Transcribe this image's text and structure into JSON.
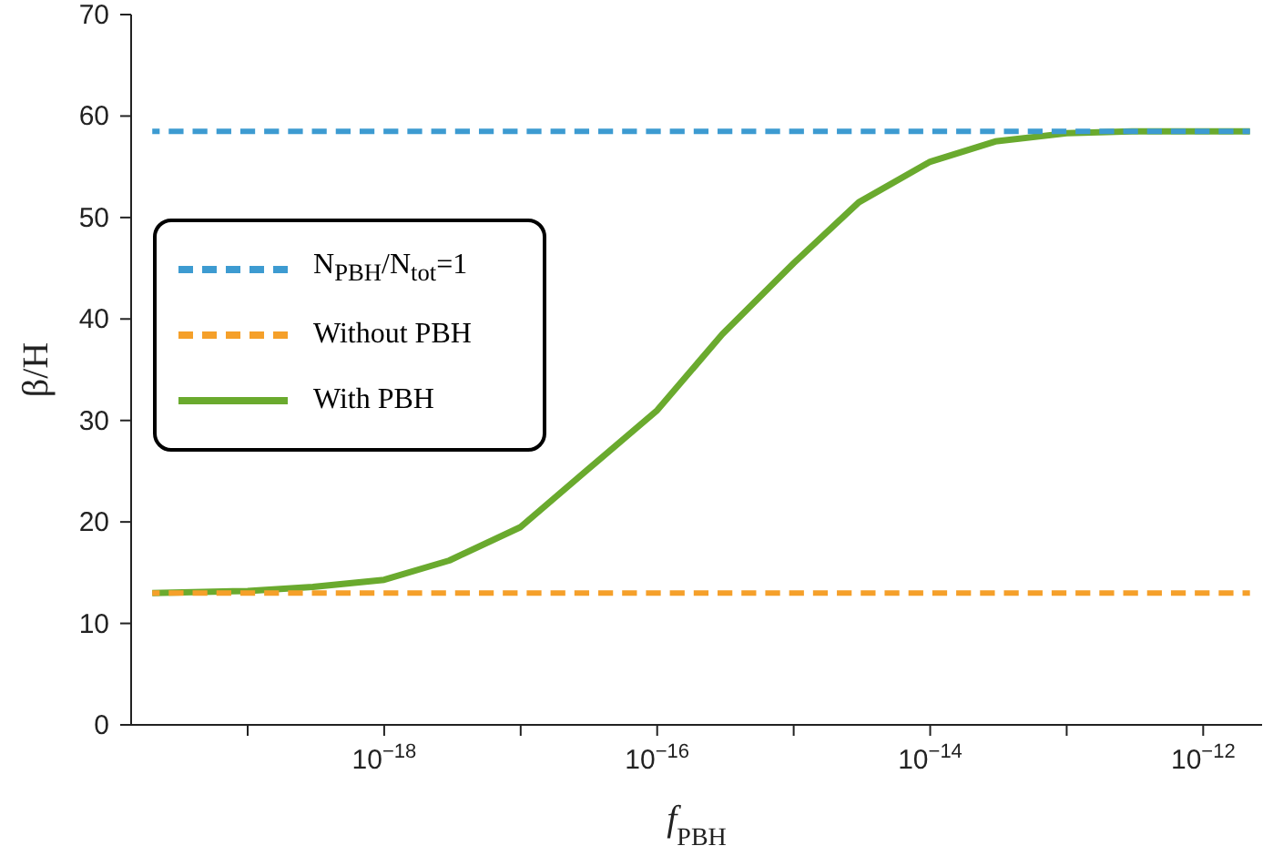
{
  "chart_data": {
    "type": "line",
    "xlabel": "f$_{PBH}$",
    "ylabel": "β/H",
    "log": "x",
    "xlim": [
      1.4e-20,
      2.7e-12
    ],
    "xticks": [
      {
        "value": 1e-19,
        "label": null
      },
      {
        "value": 1e-18,
        "label": "10$^{−18}$"
      },
      {
        "value": 1e-17,
        "label": null
      },
      {
        "value": 1e-16,
        "label": "10$^{−16}$"
      },
      {
        "value": 1e-15,
        "label": null
      },
      {
        "value": 1e-14,
        "label": "10$^{−14}$"
      },
      {
        "value": 1e-13,
        "label": null
      },
      {
        "value": 1e-12,
        "label": "10$^{−12}$"
      }
    ],
    "ylim": [
      0,
      70
    ],
    "yticks": [
      0,
      10,
      20,
      30,
      40,
      50,
      60,
      70
    ],
    "legend": "left",
    "marker": "none",
    "series": [
      {
        "name": "N$_{PBH}$/N$_{tot}$=1",
        "color": "#3d9bd1",
        "line_style": "dashed",
        "x": [
          2e-20,
          2.2e-12
        ],
        "values": [
          58.5,
          58.5
        ]
      },
      {
        "name": "Without PBH",
        "color": "#f5a02a",
        "line_style": "dashed",
        "x": [
          2e-20,
          2.2e-12
        ],
        "values": [
          13,
          13
        ]
      },
      {
        "name": "With PBH",
        "color": "#6aaa2e",
        "line_style": "solid",
        "x": [
          2e-20,
          1e-19,
          3e-19,
          1e-18,
          3e-18,
          1e-17,
          3e-17,
          1e-16,
          3e-16,
          1e-15,
          3e-15,
          1e-14,
          3e-14,
          1e-13,
          3e-13,
          1e-12,
          2.2e-12
        ],
        "values": [
          13,
          13.2,
          13.6,
          14.3,
          16.2,
          19.5,
          25,
          31,
          38.5,
          45.5,
          51.5,
          55.5,
          57.5,
          58.3,
          58.5,
          58.5,
          58.5
        ]
      }
    ]
  }
}
